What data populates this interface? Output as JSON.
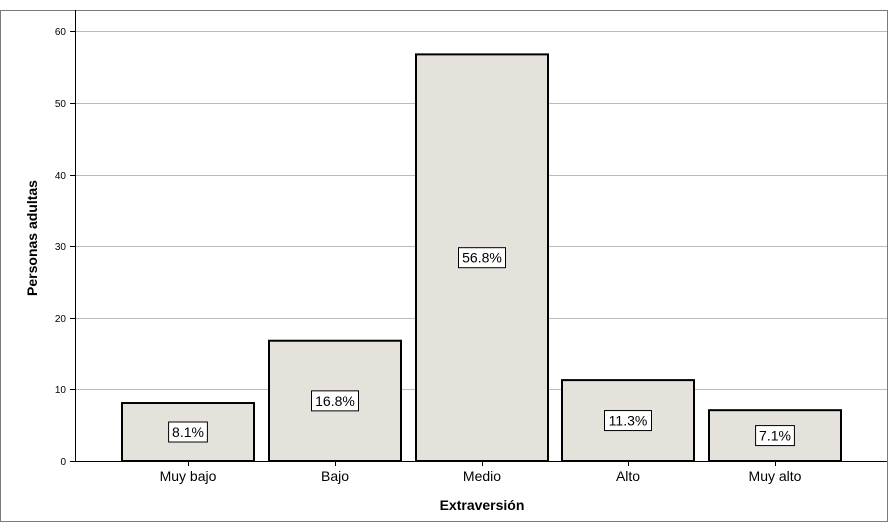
{
  "chart_data": {
    "type": "bar",
    "categories": [
      "Muy bajo",
      "Bajo",
      "Medio",
      "Alto",
      "Muy alto"
    ],
    "values": [
      8.1,
      16.8,
      56.8,
      11.3,
      7.1
    ],
    "data_labels": [
      "8.1%",
      "16.8%",
      "56.8%",
      "11.3%",
      "7.1%"
    ],
    "xlabel": "Extraversión",
    "ylabel": "Personas adultas",
    "ylim": [
      0,
      63
    ],
    "yticks": [
      0,
      10,
      20,
      30,
      40,
      50,
      60
    ],
    "grid": true,
    "colors": {
      "bar_fill": "#e5e2dc",
      "bar_stroke": "#000000",
      "grid": "#bcbcbc",
      "axis": "#000000"
    }
  }
}
